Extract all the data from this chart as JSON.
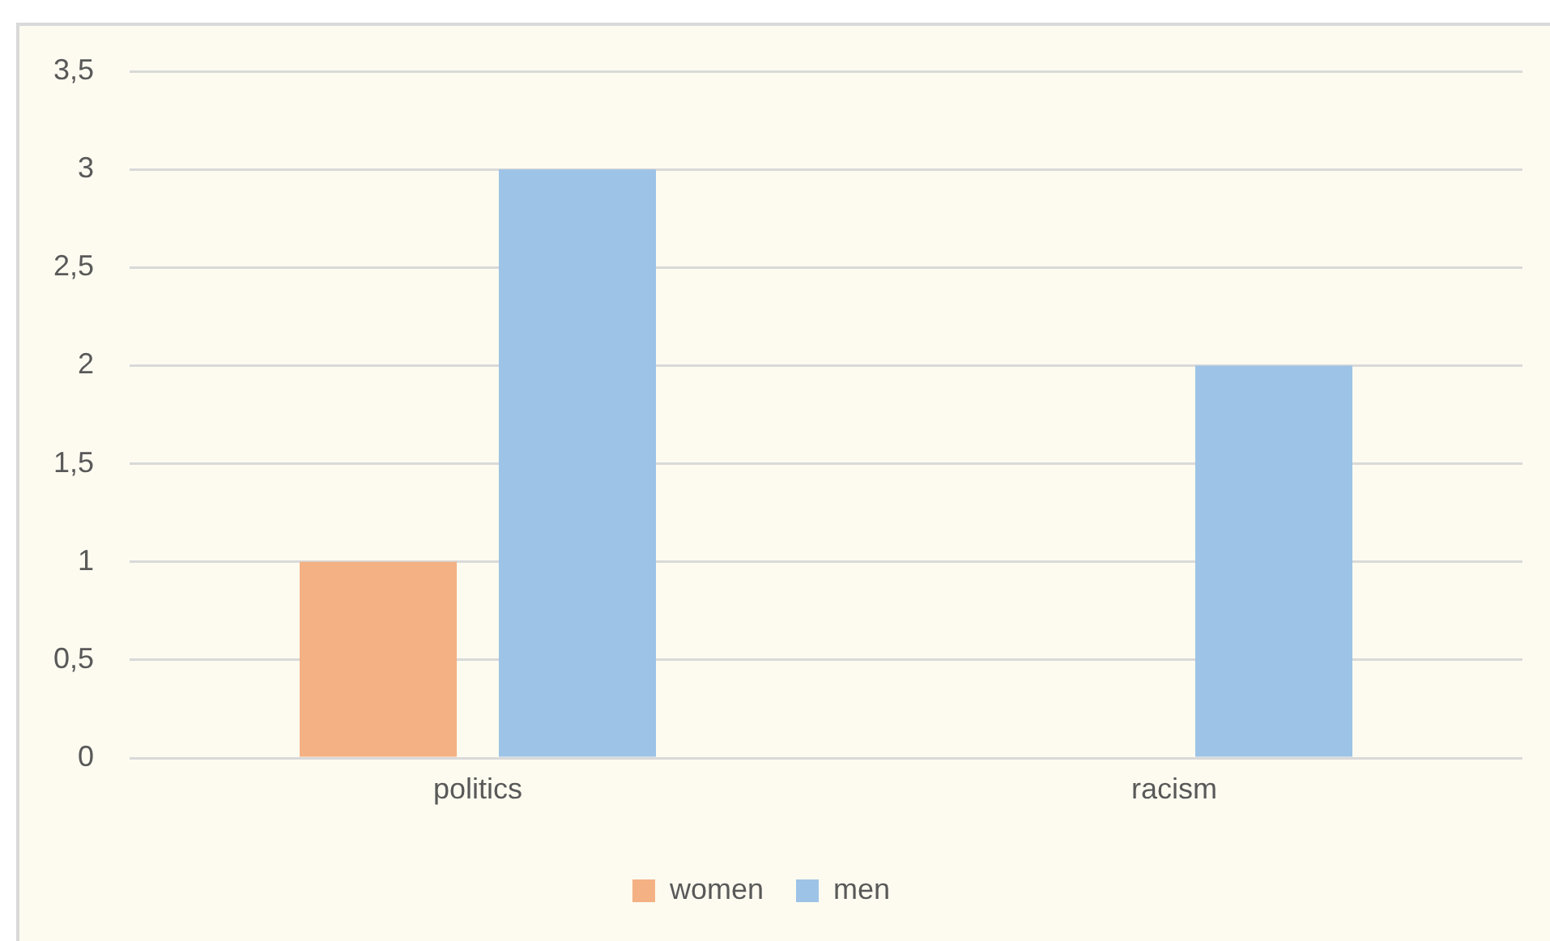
{
  "chart_data": {
    "type": "bar",
    "categories": [
      "politics",
      "racism"
    ],
    "series": [
      {
        "name": "women",
        "color": "#f4b183",
        "values": [
          1,
          0
        ]
      },
      {
        "name": "men",
        "color": "#9dc3e6",
        "values": [
          3,
          2
        ]
      }
    ],
    "ylim": [
      0,
      3.5
    ],
    "yticks": [
      0,
      {
        "value": 0.5,
        "label": "0,5"
      },
      1,
      {
        "value": 1.5,
        "label": "1,5"
      },
      2,
      {
        "value": 2.5,
        "label": "2,5"
      },
      3,
      {
        "value": 3.5,
        "label": "3,5"
      }
    ],
    "grid": "y",
    "legend": "bottom"
  }
}
